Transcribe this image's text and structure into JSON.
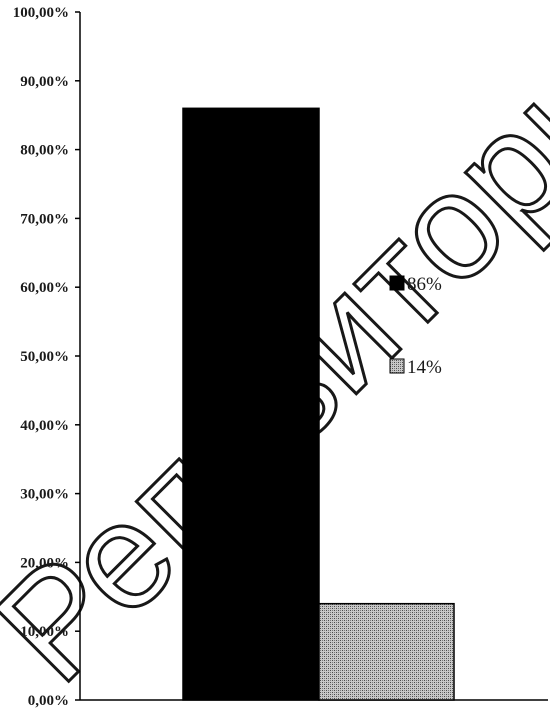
{
  "chart_data": {
    "type": "bar",
    "title": "",
    "xlabel": "",
    "ylabel": "",
    "ylim": [
      0,
      100
    ],
    "y_ticks": [
      "0,00%",
      "10,00%",
      "20,00%",
      "30,00%",
      "40,00%",
      "50,00%",
      "60,00%",
      "70,00%",
      "80,00%",
      "90,00%",
      "100,00%"
    ],
    "grid": false,
    "legend_position": "right",
    "series": [
      {
        "name": "86%",
        "value": 86,
        "fill": "solid",
        "color": "#000000"
      },
      {
        "name": "14%",
        "value": 14,
        "fill": "hatched",
        "color": "#9a9a9a"
      }
    ]
  },
  "watermark": {
    "text": "Репозиторий Бан"
  }
}
